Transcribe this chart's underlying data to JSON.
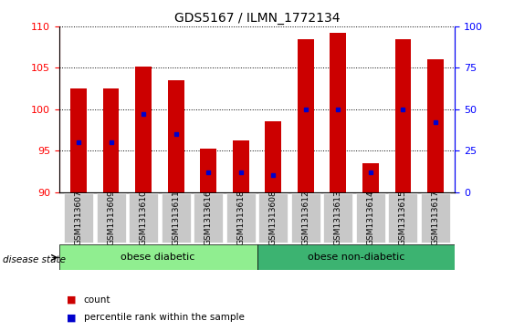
{
  "title": "GDS5167 / ILMN_1772134",
  "samples": [
    "GSM1313607",
    "GSM1313609",
    "GSM1313610",
    "GSM1313611",
    "GSM1313616",
    "GSM1313618",
    "GSM1313608",
    "GSM1313612",
    "GSM1313613",
    "GSM1313614",
    "GSM1313615",
    "GSM1313617"
  ],
  "counts": [
    102.5,
    102.5,
    105.2,
    103.5,
    95.2,
    96.2,
    98.5,
    108.5,
    109.2,
    93.5,
    108.5,
    106.0
  ],
  "percentile_ranks": [
    30,
    30,
    47,
    35,
    12,
    12,
    10,
    50,
    50,
    12,
    50,
    42
  ],
  "y_min": 90,
  "y_max": 110,
  "y_ticks": [
    90,
    95,
    100,
    105,
    110
  ],
  "right_y_ticks": [
    0,
    25,
    50,
    75,
    100
  ],
  "bar_color": "#CC0000",
  "blue_color": "#0000CC",
  "group1_label": "obese diabetic",
  "group2_label": "obese non-diabetic",
  "group1_count": 6,
  "group2_count": 6,
  "group1_bg": "#90EE90",
  "group2_bg": "#3CB371",
  "disease_state_label": "disease state",
  "legend_count_label": "count",
  "legend_percentile_label": "percentile rank within the sample",
  "bar_width": 0.5,
  "tick_bg": "#C8C8C8",
  "fig_width": 5.63,
  "fig_height": 3.63,
  "dpi": 100
}
